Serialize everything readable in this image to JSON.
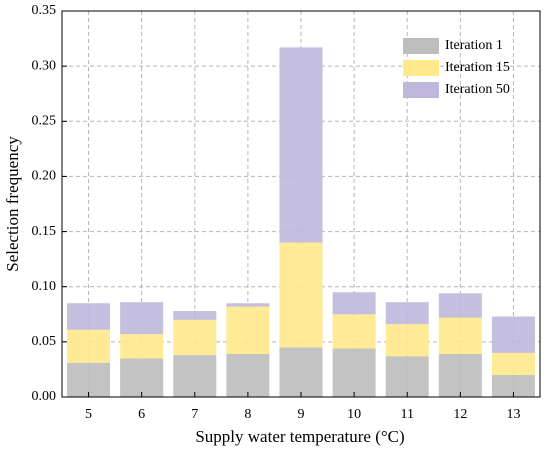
{
  "chart_data": {
    "type": "stacked_bar",
    "x_label": "Supply water temperature (°C)",
    "y_label": "Selection frequency",
    "categories": [
      "5",
      "6",
      "7",
      "8",
      "9",
      "10",
      "11",
      "12",
      "13"
    ],
    "series": [
      {
        "name": "Iteration 1",
        "color": "#bdbdbd",
        "values": [
          0.031,
          0.035,
          0.038,
          0.039,
          0.045,
          0.044,
          0.037,
          0.039,
          0.02
        ]
      },
      {
        "name": "Iteration 15",
        "color": "#ffe98a",
        "values": [
          0.03,
          0.022,
          0.032,
          0.043,
          0.095,
          0.031,
          0.029,
          0.033,
          0.02
        ]
      },
      {
        "name": "Iteration 50",
        "color": "#bfb8dc",
        "values": [
          0.024,
          0.029,
          0.008,
          0.003,
          0.177,
          0.02,
          0.02,
          0.022,
          0.033
        ]
      }
    ],
    "ylim": [
      0,
      0.35
    ],
    "yticks": [
      {
        "value": 0,
        "label": "0.00"
      },
      {
        "value": 0.05,
        "label": "0.05"
      },
      {
        "value": 0.1,
        "label": "0.10"
      },
      {
        "value": 0.15,
        "label": "0.15"
      },
      {
        "value": 0.2,
        "label": "0.20"
      },
      {
        "value": 0.25,
        "label": "0.25"
      },
      {
        "value": 0.3,
        "label": "0.30"
      },
      {
        "value": 0.35,
        "label": "0.35"
      }
    ],
    "grid": true,
    "legend": "upper right"
  }
}
